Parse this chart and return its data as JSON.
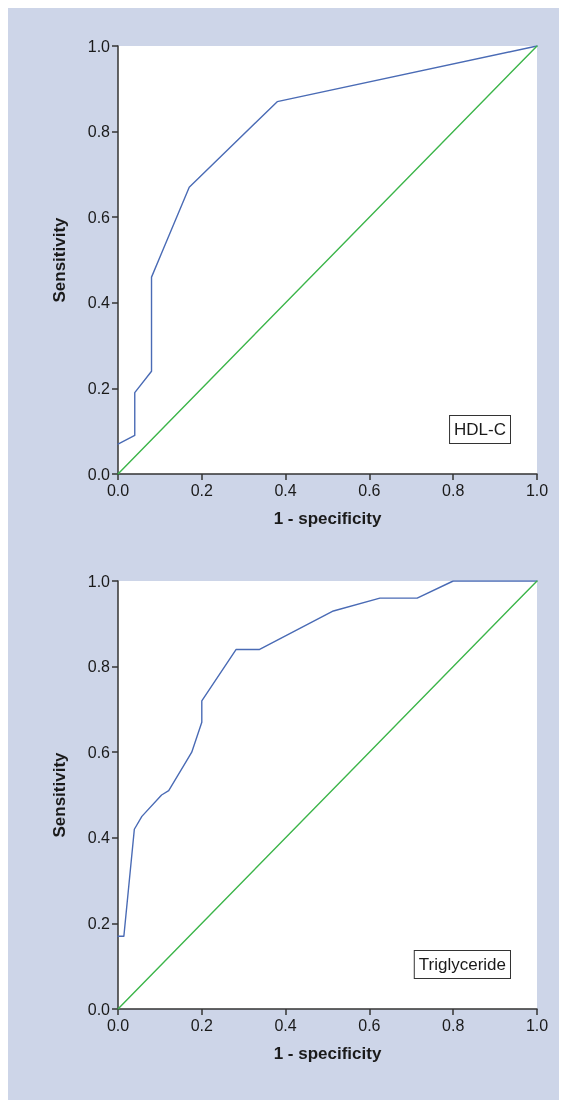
{
  "chart_data": [
    {
      "type": "line",
      "xlabel": "1 - specificity",
      "ylabel": "Sensitivity",
      "annotations": [
        "HDL-C"
      ],
      "xlim": [
        0,
        1
      ],
      "ylim": [
        0,
        1
      ],
      "xticks": [
        {
          "value": 0,
          "label": "0.0"
        },
        {
          "value": 0.2,
          "label": "0.2"
        },
        {
          "value": 0.4,
          "label": "0.4"
        },
        {
          "value": 0.6,
          "label": "0.6"
        },
        {
          "value": 0.8,
          "label": "0.8"
        },
        {
          "value": 1,
          "label": "1.0"
        }
      ],
      "yticks": [
        {
          "value": 0,
          "label": "0.0"
        },
        {
          "value": 0.2,
          "label": "0.2"
        },
        {
          "value": 0.4,
          "label": "0.4"
        },
        {
          "value": 0.6,
          "label": "0.6"
        },
        {
          "value": 0.8,
          "label": "0.8"
        },
        {
          "value": 1,
          "label": "1.0"
        }
      ],
      "grid": false,
      "marker": "none",
      "line_style": "solid",
      "series": [
        {
          "color": "#4a6bb5",
          "x": [
            0,
            0.04,
            0.04,
            0.08,
            0.08,
            0.17,
            0.38,
            1
          ],
          "values": [
            0.07,
            0.09,
            0.19,
            0.24,
            0.46,
            0.67,
            0.87,
            1
          ]
        },
        {
          "color": "#3cb54a",
          "x": [
            0,
            1
          ],
          "values": [
            0,
            1
          ]
        }
      ]
    },
    {
      "type": "line",
      "xlabel": "1 - specificity",
      "ylabel": "Sensitivity",
      "annotations": [
        "Triglyceride"
      ],
      "xlim": [
        0,
        1
      ],
      "ylim": [
        0,
        1
      ],
      "xticks": [
        {
          "value": 0,
          "label": "0.0"
        },
        {
          "value": 0.2,
          "label": "0.2"
        },
        {
          "value": 0.4,
          "label": "0.4"
        },
        {
          "value": 0.6,
          "label": "0.6"
        },
        {
          "value": 0.8,
          "label": "0.8"
        },
        {
          "value": 1,
          "label": "1.0"
        }
      ],
      "yticks": [
        {
          "value": 0,
          "label": "0.0"
        },
        {
          "value": 0.2,
          "label": "0.2"
        },
        {
          "value": 0.4,
          "label": "0.4"
        },
        {
          "value": 0.6,
          "label": "0.6"
        },
        {
          "value": 0.8,
          "label": "0.8"
        },
        {
          "value": 1,
          "label": "1.0"
        }
      ],
      "grid": false,
      "marker": "none",
      "line_style": "solid",
      "series": [
        {
          "color": "#4a6bb5",
          "x": [
            0,
            0.014,
            0.039,
            0.057,
            0.104,
            0.121,
            0.176,
            0.2,
            0.2,
            0.282,
            0.338,
            0.514,
            0.625,
            0.714,
            0.8,
            1
          ],
          "values": [
            0.17,
            0.17,
            0.42,
            0.45,
            0.5,
            0.51,
            0.6,
            0.67,
            0.72,
            0.84,
            0.84,
            0.93,
            0.96,
            0.96,
            1,
            1
          ]
        },
        {
          "color": "#3cb54a",
          "x": [
            0,
            1
          ],
          "values": [
            0,
            1
          ]
        }
      ]
    }
  ]
}
